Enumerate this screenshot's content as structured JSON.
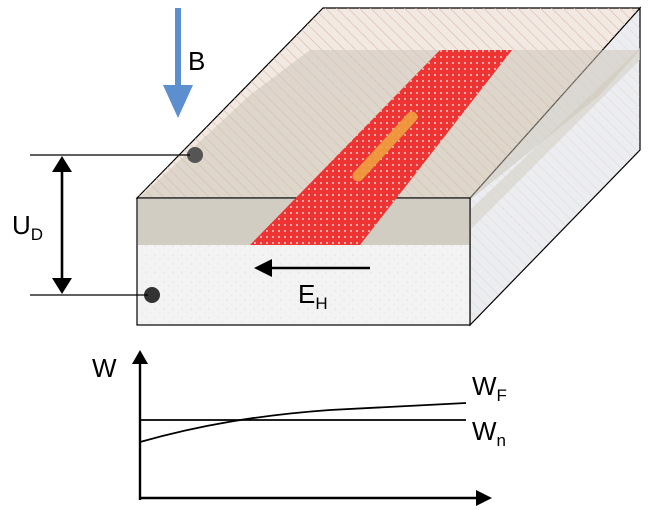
{
  "diagram": {
    "labels": {
      "magnetic_field": "B",
      "voltage": "U",
      "voltage_sub": "D",
      "electric_field": "E",
      "electric_field_sub": "H"
    }
  },
  "graph": {
    "y_axis_label": "W",
    "curves": [
      {
        "label": "W",
        "sub": "F"
      },
      {
        "label": "W",
        "sub": "n"
      }
    ]
  },
  "colors": {
    "b_arrow": "#5b8fd0",
    "top_face": "#efe6df",
    "gray_layer": "#cbc6b8",
    "red_stripe": "#ee3333",
    "orange_bar": "#f0a040",
    "side_face": "#ebedf1",
    "front_bottom": "#f2f2f2",
    "ink": "#000000"
  }
}
